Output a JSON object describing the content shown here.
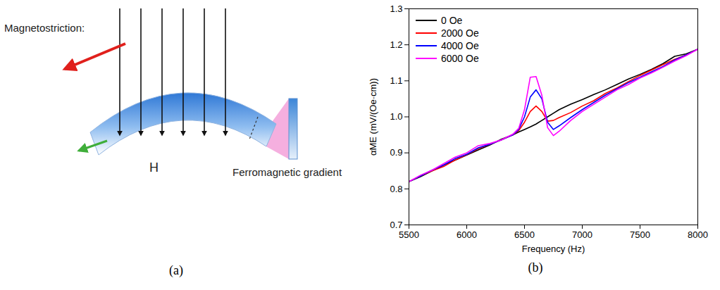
{
  "chart_data": {
    "type": "line",
    "x_label": "Frequency (Hz)",
    "y_label": "αME (mV/(Oe·cm))",
    "x": [
      5500,
      5600,
      5700,
      5800,
      5900,
      6000,
      6100,
      6200,
      6300,
      6400,
      6450,
      6500,
      6550,
      6600,
      6650,
      6700,
      6750,
      6800,
      6900,
      7000,
      7100,
      7200,
      7300,
      7400,
      7500,
      7600,
      7700,
      7800,
      7900,
      8000
    ],
    "series": [
      {
        "name": "0 Oe",
        "color": "#000000",
        "values": [
          0.82,
          0.834,
          0.85,
          0.866,
          0.88,
          0.894,
          0.908,
          0.922,
          0.938,
          0.95,
          0.958,
          0.965,
          0.972,
          0.98,
          0.99,
          1.0,
          1.01,
          1.02,
          1.035,
          1.048,
          1.062,
          1.075,
          1.09,
          1.105,
          1.118,
          1.132,
          1.148,
          1.168,
          1.175,
          1.188
        ]
      },
      {
        "name": "2000 Oe",
        "color": "#ff0000",
        "values": [
          0.82,
          0.836,
          0.85,
          0.862,
          0.88,
          0.895,
          0.912,
          0.924,
          0.936,
          0.95,
          0.962,
          0.985,
          1.015,
          1.03,
          1.015,
          0.988,
          0.99,
          0.998,
          1.012,
          1.03,
          1.045,
          1.065,
          1.08,
          1.098,
          1.115,
          1.13,
          1.145,
          1.16,
          1.172,
          1.188
        ]
      },
      {
        "name": "4000 Oe",
        "color": "#0000ff",
        "values": [
          0.82,
          0.836,
          0.852,
          0.866,
          0.884,
          0.896,
          0.914,
          0.924,
          0.936,
          0.95,
          0.965,
          1.0,
          1.055,
          1.075,
          1.05,
          0.985,
          0.965,
          0.975,
          0.998,
          1.02,
          1.04,
          1.06,
          1.078,
          1.095,
          1.11,
          1.125,
          1.14,
          1.158,
          1.172,
          1.188
        ]
      },
      {
        "name": "6000 Oe",
        "color": "#ff00ff",
        "values": [
          0.82,
          0.838,
          0.852,
          0.87,
          0.888,
          0.9,
          0.92,
          0.926,
          0.936,
          0.952,
          0.968,
          1.02,
          1.11,
          1.112,
          1.06,
          0.97,
          0.948,
          0.96,
          0.99,
          1.015,
          1.035,
          1.055,
          1.075,
          1.09,
          1.108,
          1.122,
          1.138,
          1.155,
          1.17,
          1.188
        ]
      }
    ],
    "xlim": [
      5500,
      8000
    ],
    "xticks": [
      5500,
      6000,
      6500,
      7000,
      7500,
      8000
    ],
    "ylim": [
      0.7,
      1.3
    ],
    "yticks": [
      0.7,
      0.8,
      0.9,
      {
        "value": 1,
        "label": "1.0"
      },
      1.1,
      1.2,
      1.3
    ],
    "grid": false,
    "legend": "upper left"
  },
  "diagram": {
    "magnetostriction_label": "Magnetostriction:",
    "field_label": "H",
    "gradient_label": "Ferromagnetic gradient"
  },
  "panel_labels": [
    "(a)",
    "(b)"
  ]
}
